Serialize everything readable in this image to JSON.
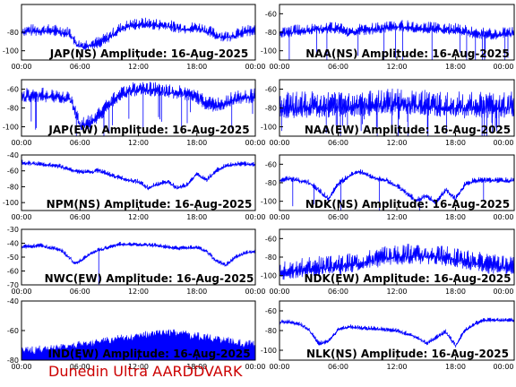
{
  "footer": {
    "text": "Dunedin Ultra AARDDVARK",
    "color": "#cc0000"
  },
  "style": {
    "trace_color": "#0000ff",
    "axis_color": "#000000",
    "background": "#ffffff"
  },
  "chart_data": [
    {
      "type": "line",
      "title": "JAP(NS) Amplitude: 16-Aug-2025",
      "x_ticks": [
        "00:00",
        "06:00",
        "12:00",
        "18:00",
        "00:00"
      ],
      "x_range": [
        0,
        24
      ],
      "ylim": [
        -110,
        -50
      ],
      "y_ticks": [
        -80,
        -100
      ],
      "series": [
        {
          "values": [
            [
              0,
              -76
            ],
            [
              1,
              -75
            ],
            [
              2,
              -75
            ],
            [
              3,
              -75
            ],
            [
              4,
              -76
            ],
            [
              5,
              -78
            ],
            [
              5.5,
              -88
            ],
            [
              6,
              -92
            ],
            [
              6.5,
              -91
            ],
            [
              7,
              -90
            ],
            [
              8,
              -88
            ],
            [
              9,
              -82
            ],
            [
              10,
              -74
            ],
            [
              11,
              -70
            ],
            [
              12,
              -68
            ],
            [
              13,
              -68
            ],
            [
              14,
              -69
            ],
            [
              15,
              -70
            ],
            [
              16,
              -72
            ],
            [
              17,
              -73
            ],
            [
              18,
              -72
            ],
            [
              19,
              -75
            ],
            [
              20,
              -80
            ],
            [
              21,
              -82
            ],
            [
              22,
              -80
            ],
            [
              23,
              -76
            ],
            [
              24,
              -75
            ]
          ],
          "noise": 8
        }
      ]
    },
    {
      "type": "line",
      "title": "NAA(NS) Amplitude: 16-Aug-2025",
      "x_ticks": [
        "00:00",
        "06:00",
        "12:00",
        "18:00",
        "00:00"
      ],
      "x_range": [
        0,
        24
      ],
      "ylim": [
        -110,
        -50
      ],
      "y_ticks": [
        -60,
        -80,
        -100
      ],
      "series": [
        {
          "values": [
            [
              0,
              -78
            ],
            [
              2,
              -75
            ],
            [
              4,
              -73
            ],
            [
              6,
              -73
            ],
            [
              7,
              -77
            ],
            [
              8,
              -75
            ],
            [
              10,
              -73
            ],
            [
              12,
              -70
            ],
            [
              14,
              -72
            ],
            [
              16,
              -73
            ],
            [
              18,
              -74
            ],
            [
              20,
              -78
            ],
            [
              22,
              -80
            ],
            [
              24,
              -77
            ]
          ],
          "noise": 8,
          "spikes": 16
        }
      ]
    },
    {
      "type": "line",
      "title": "JAP(EW) Amplitude: 16-Aug-2025",
      "x_ticks": [
        "00:00",
        "06:00",
        "12:00",
        "18:00",
        "00:00"
      ],
      "x_range": [
        0,
        24
      ],
      "ylim": [
        -110,
        -50
      ],
      "y_ticks": [
        -60,
        -80,
        -100
      ],
      "series": [
        {
          "values": [
            [
              0,
              -64
            ],
            [
              2,
              -63
            ],
            [
              4,
              -64
            ],
            [
              5,
              -66
            ],
            [
              6,
              -95
            ],
            [
              7,
              -92
            ],
            [
              8,
              -84
            ],
            [
              9,
              -72
            ],
            [
              10,
              -62
            ],
            [
              11,
              -58
            ],
            [
              12,
              -56
            ],
            [
              14,
              -57
            ],
            [
              16,
              -60
            ],
            [
              18,
              -64
            ],
            [
              19,
              -72
            ],
            [
              20,
              -74
            ],
            [
              21,
              -70
            ],
            [
              22,
              -66
            ],
            [
              24,
              -64
            ]
          ],
          "noise": 10,
          "spikes": 18
        }
      ]
    },
    {
      "type": "line",
      "title": "NAA(EW) Amplitude: 16-Aug-2025",
      "x_ticks": [
        "00:00",
        "06:00",
        "12:00",
        "18:00",
        "00:00"
      ],
      "x_range": [
        0,
        24
      ],
      "ylim": [
        -110,
        -50
      ],
      "y_ticks": [
        -60,
        -80,
        -100
      ],
      "series": [
        {
          "values": [
            [
              0,
              -72
            ],
            [
              4,
              -71
            ],
            [
              8,
              -70
            ],
            [
              12,
              -68
            ],
            [
              16,
              -70
            ],
            [
              20,
              -72
            ],
            [
              24,
              -71
            ]
          ],
          "noise": 18,
          "spikes": 30
        }
      ]
    },
    {
      "type": "line",
      "title": "NPM(NS) Amplitude: 16-Aug-2025",
      "x_ticks": [
        "00:00",
        "06:00",
        "12:00",
        "18:00",
        "00:00"
      ],
      "x_range": [
        0,
        24
      ],
      "ylim": [
        -110,
        -40
      ],
      "y_ticks": [
        -40,
        -60,
        -80,
        -100
      ],
      "series": [
        {
          "values": [
            [
              0,
              -48
            ],
            [
              2,
              -50
            ],
            [
              4,
              -53
            ],
            [
              5,
              -57
            ],
            [
              6,
              -60
            ],
            [
              7,
              -60
            ],
            [
              8,
              -58
            ],
            [
              9,
              -63
            ],
            [
              10,
              -67
            ],
            [
              11,
              -70
            ],
            [
              12,
              -72
            ],
            [
              13,
              -80
            ],
            [
              14,
              -75
            ],
            [
              15,
              -72
            ],
            [
              16,
              -80
            ],
            [
              17,
              -76
            ],
            [
              18,
              -62
            ],
            [
              19,
              -70
            ],
            [
              20,
              -58
            ],
            [
              21,
              -52
            ],
            [
              22,
              -50
            ],
            [
              24,
              -50
            ]
          ],
          "noise": 4
        }
      ]
    },
    {
      "type": "line",
      "title": "NDK(NS) Amplitude: 16-Aug-2025",
      "x_ticks": [
        "00:00",
        "06:00",
        "12:00",
        "18:00",
        "00:00"
      ],
      "x_range": [
        0,
        24
      ],
      "ylim": [
        -110,
        -50
      ],
      "y_ticks": [
        -60,
        -80,
        -100
      ],
      "series": [
        {
          "values": [
            [
              0,
              -76
            ],
            [
              1,
              -74
            ],
            [
              3,
              -78
            ],
            [
              4,
              -86
            ],
            [
              5,
              -96
            ],
            [
              6,
              -80
            ],
            [
              7,
              -72
            ],
            [
              8,
              -66
            ],
            [
              9,
              -70
            ],
            [
              10,
              -74
            ],
            [
              11,
              -76
            ],
            [
              12,
              -82
            ],
            [
              13,
              -90
            ],
            [
              14,
              -98
            ],
            [
              15,
              -92
            ],
            [
              16,
              -100
            ],
            [
              17,
              -86
            ],
            [
              18,
              -96
            ],
            [
              19,
              -80
            ],
            [
              20,
              -76
            ],
            [
              24,
              -76
            ]
          ],
          "noise": 4,
          "spikes": 6
        }
      ]
    },
    {
      "type": "line",
      "title": "NWC(EW) Amplitude: 16-Aug-2025",
      "x_ticks": [
        "00:00",
        "06:00",
        "12:00",
        "18:00",
        "00:00"
      ],
      "x_range": [
        0,
        24
      ],
      "ylim": [
        -70,
        -30
      ],
      "y_ticks": [
        -30,
        -40,
        -50,
        -60,
        -70
      ],
      "series": [
        {
          "values": [
            [
              0,
              -42
            ],
            [
              2,
              -41
            ],
            [
              4,
              -44
            ],
            [
              5,
              -50
            ],
            [
              5.5,
              -54
            ],
            [
              6,
              -52
            ],
            [
              7,
              -47
            ],
            [
              8,
              -44
            ],
            [
              10,
              -40
            ],
            [
              12,
              -40
            ],
            [
              14,
              -41
            ],
            [
              16,
              -43
            ],
            [
              18,
              -42
            ],
            [
              19,
              -45
            ],
            [
              20,
              -52
            ],
            [
              21,
              -55
            ],
            [
              22,
              -49
            ],
            [
              23,
              -46
            ],
            [
              24,
              -45
            ]
          ],
          "noise": 2,
          "spikes": 1
        }
      ]
    },
    {
      "type": "line",
      "title": "NDK(EW) Amplitude: 16-Aug-2025",
      "x_ticks": [
        "00:00",
        "06:00",
        "12:00",
        "18:00",
        "00:00"
      ],
      "x_range": [
        0,
        24
      ],
      "ylim": [
        -110,
        -50
      ],
      "y_ticks": [
        -60,
        -80,
        -100
      ],
      "series": [
        {
          "values": [
            [
              0,
              -90
            ],
            [
              2,
              -88
            ],
            [
              4,
              -86
            ],
            [
              6,
              -84
            ],
            [
              8,
              -80
            ],
            [
              10,
              -76
            ],
            [
              12,
              -73
            ],
            [
              14,
              -72
            ],
            [
              16,
              -73
            ],
            [
              18,
              -76
            ],
            [
              20,
              -80
            ],
            [
              22,
              -84
            ],
            [
              24,
              -86
            ]
          ],
          "noise": 14
        }
      ]
    },
    {
      "type": "area",
      "title": "NDK(EW) Amplitude: 16-Aug-2025",
      "title_shown": "IND(EW) Amplitude: 16-Aug-2025",
      "x_ticks": [
        "00:00",
        "06:00",
        "12:00",
        "18:00",
        "00:00"
      ],
      "x_range": [
        0,
        24
      ],
      "ylim": [
        -80,
        -40
      ],
      "y_ticks": [
        -40,
        -60,
        -80
      ],
      "series": [
        {
          "values": [
            [
              0,
              -74
            ],
            [
              4,
              -72
            ],
            [
              8,
              -68
            ],
            [
              12,
              -64
            ],
            [
              14,
              -62
            ],
            [
              16,
              -62
            ],
            [
              18,
              -64
            ],
            [
              20,
              -66
            ],
            [
              24,
              -70
            ]
          ],
          "noise": 6,
          "fill": true
        }
      ]
    },
    {
      "type": "line",
      "title": "NLK(NS) Amplitude: 16-Aug-2025",
      "x_ticks": [
        "00:00",
        "06:00",
        "12:00",
        "18:00",
        "00:00"
      ],
      "x_range": [
        0,
        24
      ],
      "ylim": [
        -110,
        -50
      ],
      "y_ticks": [
        -60,
        -80,
        -100
      ],
      "series": [
        {
          "values": [
            [
              0,
              -70
            ],
            [
              1,
              -70
            ],
            [
              2,
              -72
            ],
            [
              3,
              -78
            ],
            [
              4,
              -92
            ],
            [
              5,
              -90
            ],
            [
              6,
              -78
            ],
            [
              7,
              -75
            ],
            [
              8,
              -76
            ],
            [
              10,
              -77
            ],
            [
              12,
              -79
            ],
            [
              13,
              -82
            ],
            [
              14,
              -85
            ],
            [
              15,
              -92
            ],
            [
              16,
              -86
            ],
            [
              17,
              -80
            ],
            [
              18,
              -94
            ],
            [
              19,
              -78
            ],
            [
              20,
              -72
            ],
            [
              21,
              -68
            ],
            [
              24,
              -68
            ]
          ],
          "noise": 3
        }
      ]
    }
  ]
}
